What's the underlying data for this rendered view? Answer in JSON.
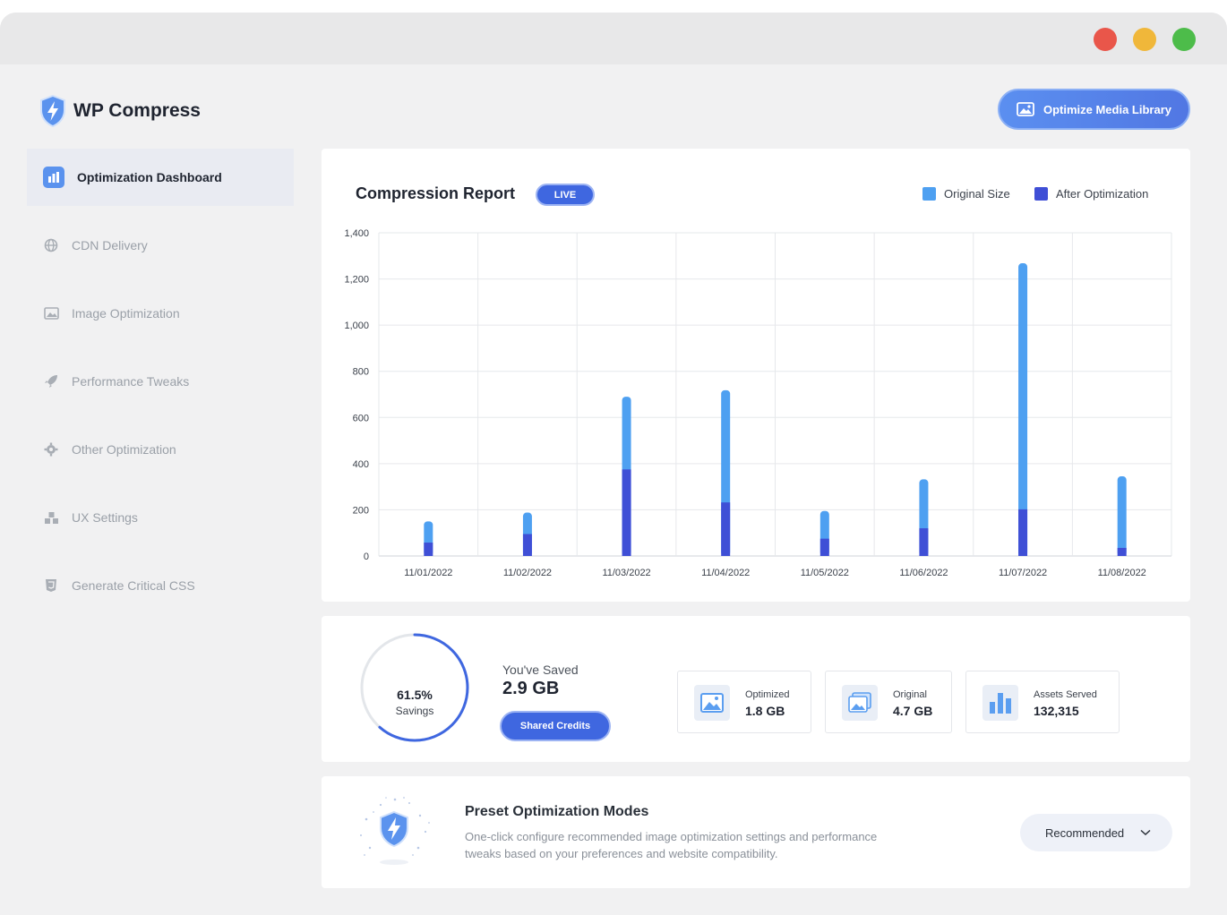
{
  "brand": {
    "name": "WP Compress"
  },
  "header": {
    "optimize_label": "Optimize Media Library"
  },
  "sidebar": {
    "items": [
      {
        "label": "Optimization Dashboard",
        "icon": "bar-chart-icon",
        "active": true
      },
      {
        "label": "CDN Delivery",
        "icon": "globe-icon"
      },
      {
        "label": "Image Optimization",
        "icon": "image-icon"
      },
      {
        "label": "Performance Tweaks",
        "icon": "rocket-icon"
      },
      {
        "label": "Other Optimization",
        "icon": "gear-icon"
      },
      {
        "label": "UX Settings",
        "icon": "cubes-icon"
      },
      {
        "label": "Generate Critical CSS",
        "icon": "css-icon"
      }
    ]
  },
  "report": {
    "title": "Compression Report",
    "badge": "LIVE",
    "legend": {
      "original": "Original Size",
      "after": "After Optimization"
    }
  },
  "colors": {
    "original": "#4ea0f1",
    "after": "#3f4fd6",
    "accent": "#3f67e0"
  },
  "chart_data": {
    "type": "bar",
    "stacked_overlay": true,
    "categories": [
      "11/01/2022",
      "11/02/2022",
      "11/03/2022",
      "11/04/2022",
      "11/05/2022",
      "11/06/2022",
      "11/07/2022",
      "11/08/2022"
    ],
    "series": [
      {
        "name": "Original Size",
        "values": [
          150,
          188,
          690,
          718,
          195,
          332,
          1268,
          345
        ]
      },
      {
        "name": "After Optimization",
        "values": [
          58,
          95,
          375,
          232,
          75,
          120,
          202,
          35
        ]
      }
    ],
    "yticks": [
      "0",
      "200",
      "400",
      "600",
      "800",
      "1,000",
      "1,200",
      "1,400"
    ],
    "ylim": [
      0,
      1400
    ],
    "grid": true,
    "legend_position": "top-right"
  },
  "stats": {
    "savings_pct": "61.5%",
    "savings_label": "Savings",
    "savings_fraction": 0.615,
    "saved_label": "You've Saved",
    "saved_value": "2.9 GB",
    "credits_label": "Shared Credits",
    "boxes": [
      {
        "label": "Optimized",
        "value": "1.8 GB"
      },
      {
        "label": "Original",
        "value": "4.7 GB"
      },
      {
        "label": "Assets Served",
        "value": "132,315"
      }
    ]
  },
  "preset": {
    "title": "Preset Optimization Modes",
    "description": "One-click configure recommended image optimization settings and performance tweaks based on your preferences and website compatibility.",
    "selected": "Recommended"
  }
}
